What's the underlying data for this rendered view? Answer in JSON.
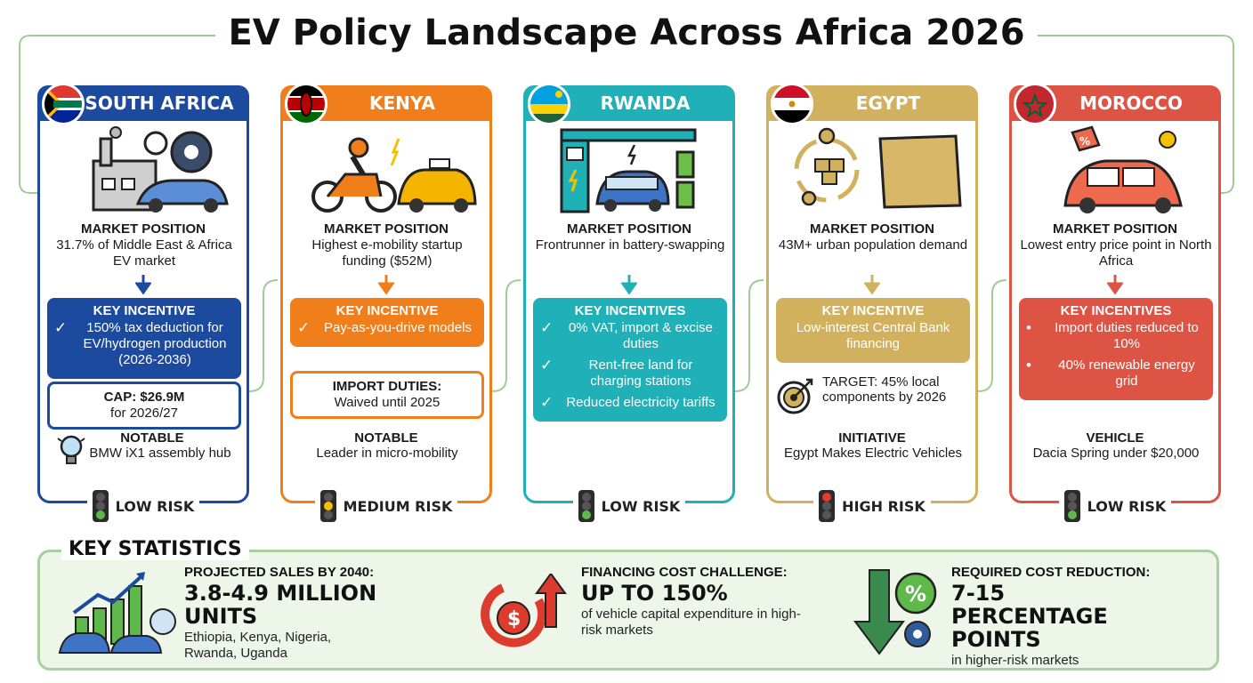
{
  "title": "EV Policy Landscape Across Africa 2026",
  "countries": [
    {
      "name": "SOUTH AFRICA",
      "color": "#1c4a9e",
      "market_head": "MARKET POSITION",
      "market_text": "31.7% of Middle East & Africa EV market",
      "incentive_head": "KEY INCENTIVE",
      "incentives": [
        "150% tax deduction for EV/hydrogen production (2026-2036)"
      ],
      "sub_head": "CAP: $26.9M",
      "sub_text": "for 2026/27",
      "note_head": "NOTABLE",
      "note_text": "BMW iX1 assembly hub",
      "risk": "LOW RISK"
    },
    {
      "name": "KENYA",
      "color": "#f07f1b",
      "market_head": "MARKET POSITION",
      "market_text": "Highest e-mobility startup funding ($52M)",
      "incentive_head": "KEY INCENTIVE",
      "incentives": [
        "Pay-as-you-drive models"
      ],
      "sub_head": "IMPORT DUTIES:",
      "sub_text": "Waived until 2025",
      "note_head": "NOTABLE",
      "note_text": "Leader in micro-mobility",
      "risk": "MEDIUM RISK"
    },
    {
      "name": "RWANDA",
      "color": "#1fb0b8",
      "market_head": "MARKET POSITION",
      "market_text": "Frontrunner in battery-swapping",
      "incentive_head": "KEY INCENTIVES",
      "incentives": [
        "0% VAT, import & excise duties",
        "Rent-free land for charging stations",
        "Reduced electricity tariffs"
      ],
      "risk": "LOW RISK"
    },
    {
      "name": "EGYPT",
      "color": "#d2b15e",
      "market_head": "MARKET POSITION",
      "market_text": "43M+ urban population demand",
      "incentive_head": "KEY INCENTIVE",
      "incentives": [
        "Low-interest Central Bank financing"
      ],
      "target_text": "TARGET: 45% local components by 2026",
      "note_head": "INITIATIVE",
      "note_text": "Egypt Makes Electric Vehicles",
      "risk": "HIGH RISK"
    },
    {
      "name": "MOROCCO",
      "color": "#de5444",
      "market_head": "MARKET POSITION",
      "market_text": "Lowest entry price point in North Africa",
      "incentive_head": "KEY INCENTIVES",
      "incentives": [
        "Import duties reduced to 10%",
        "40% renewable energy grid"
      ],
      "note_head": "VEHICLE",
      "note_text": "Dacia Spring under $20,000",
      "risk": "LOW RISK"
    }
  ],
  "stats": {
    "title": "KEY STATISTICS",
    "items": [
      {
        "head": "PROJECTED SALES BY 2040:",
        "big": "3.8-4.9 MILLION UNITS",
        "note": "Ethiopia, Kenya, Nigeria, Rwanda, Uganda"
      },
      {
        "head": "FINANCING COST CHALLENGE:",
        "big": "UP TO 150%",
        "note": "of vehicle capital expenditure in high-risk markets"
      },
      {
        "head": "REQUIRED COST REDUCTION:",
        "big": "7-15 PERCENTAGE POINTS",
        "note": "in higher-risk markets"
      }
    ]
  },
  "icons": {
    "risk": "traffic-light-icon",
    "incentive_check": "check-circle-icon",
    "target": "target-icon",
    "note": "lightbulb-icon"
  }
}
